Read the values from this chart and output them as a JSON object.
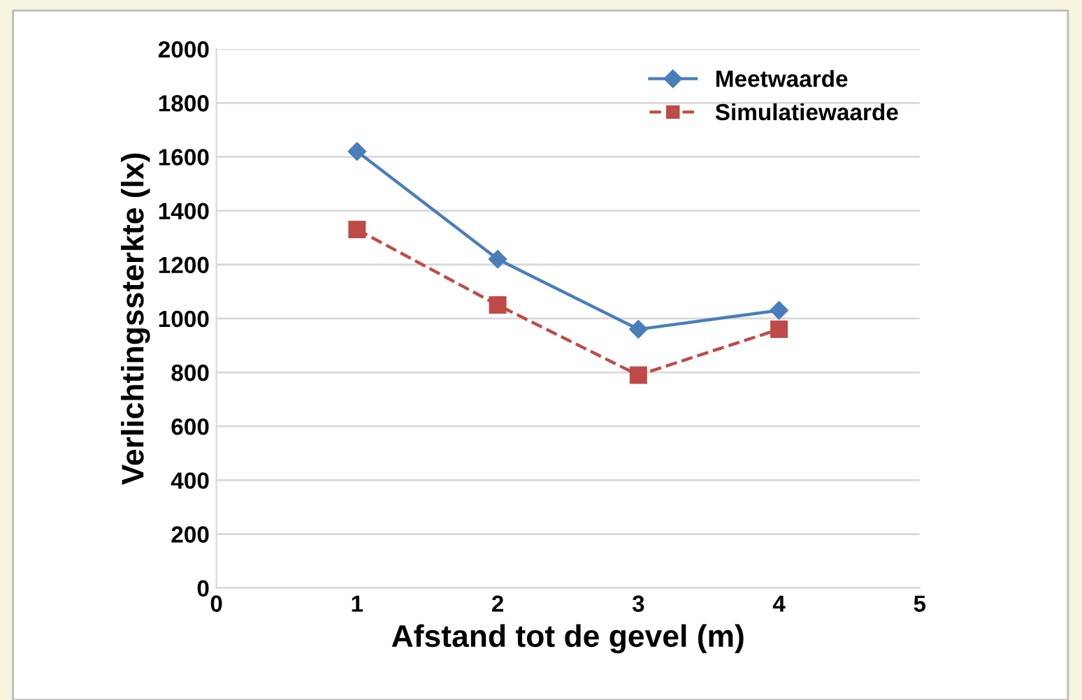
{
  "chart_data": {
    "type": "line",
    "xlabel": "Afstand tot de gevel (m)",
    "ylabel": "Verlichtingssterkte (lx)",
    "xlim": [
      0,
      5
    ],
    "xticks": [
      0,
      1,
      2,
      3,
      4,
      5
    ],
    "ylim": [
      0,
      2000
    ],
    "yticks": [
      0,
      200,
      400,
      600,
      800,
      1000,
      1200,
      1400,
      1600,
      1800,
      2000
    ],
    "grid": "y",
    "legend": "top right",
    "series": [
      {
        "name": "Meetwaarde",
        "color": "#4a7ebb",
        "x": [
          1,
          2,
          3,
          4
        ],
        "values": [
          1620,
          1220,
          960,
          1030
        ],
        "marker": "diamond",
        "line_style": "solid"
      },
      {
        "name": "Simulatiewaarde",
        "color": "#be4b48",
        "x": [
          1,
          2,
          3,
          4
        ],
        "values": [
          1330,
          1050,
          790,
          960
        ],
        "marker": "square",
        "line_style": "dashed"
      }
    ]
  }
}
